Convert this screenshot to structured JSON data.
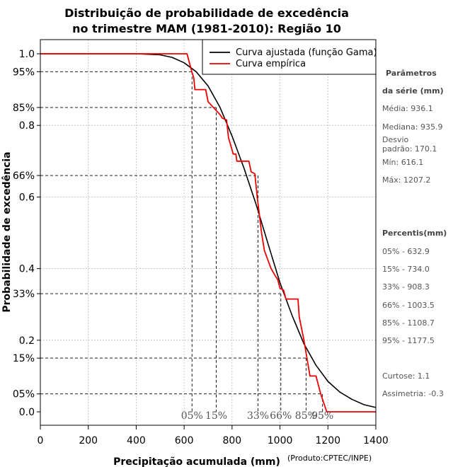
{
  "chart_data": {
    "type": "line",
    "title_line1": "Distribuição de probabilidade de excedência",
    "title_line2": "no trimestre MAM (1981-2010): Região 10",
    "xlabel": "Precipitação acumulada (mm)",
    "ylabel": "Probabilidade de excedência",
    "credit": "(Produto:CPTEC/INPE)",
    "xlim": [
      0,
      1400
    ],
    "ylim": [
      0.0,
      1.0
    ],
    "x_ticks": [
      0,
      200,
      400,
      600,
      800,
      1000,
      1200,
      1400
    ],
    "y_ticks": [
      {
        "value": 1.0,
        "label": "1.0"
      },
      {
        "value": 0.95,
        "label": "95%"
      },
      {
        "value": 0.85,
        "label": "85%"
      },
      {
        "value": 0.8,
        "label": "0.8"
      },
      {
        "value": 0.66,
        "label": "66%"
      },
      {
        "value": 0.6,
        "label": "0.6"
      },
      {
        "value": 0.4,
        "label": "0.4"
      },
      {
        "value": 0.33,
        "label": "33%"
      },
      {
        "value": 0.2,
        "label": "0.2"
      },
      {
        "value": 0.15,
        "label": "15%"
      },
      {
        "value": 0.05,
        "label": "05%"
      },
      {
        "value": 0.0,
        "label": "0.0"
      }
    ],
    "x_grid": [
      200,
      400,
      600,
      800,
      1000,
      1200
    ],
    "y_grid": [
      0.2,
      0.4,
      0.6,
      0.8
    ],
    "legend": {
      "position": "top-right",
      "entries": [
        {
          "label": "Curva ajustada (função Gama)",
          "color": "#000000"
        },
        {
          "label": "Curva empírica",
          "color": "#ee0000"
        }
      ]
    },
    "series": [
      {
        "name": "Curva ajustada (função Gama)",
        "color": "#000000",
        "points": [
          [
            0,
            1.0
          ],
          [
            400,
            1.0
          ],
          [
            500,
            0.997
          ],
          [
            550,
            0.99
          ],
          [
            600,
            0.975
          ],
          [
            650,
            0.95
          ],
          [
            700,
            0.91
          ],
          [
            750,
            0.85
          ],
          [
            800,
            0.77
          ],
          [
            850,
            0.68
          ],
          [
            900,
            0.58
          ],
          [
            950,
            0.47
          ],
          [
            1000,
            0.36
          ],
          [
            1050,
            0.27
          ],
          [
            1100,
            0.19
          ],
          [
            1150,
            0.13
          ],
          [
            1200,
            0.085
          ],
          [
            1250,
            0.055
          ],
          [
            1300,
            0.035
          ],
          [
            1350,
            0.02
          ],
          [
            1400,
            0.012
          ]
        ]
      },
      {
        "name": "Curva empírica",
        "color": "#ee0000",
        "points": [
          [
            0,
            1.0
          ],
          [
            612,
            1.0
          ],
          [
            632,
            0.95
          ],
          [
            640,
            0.933
          ],
          [
            645,
            0.9
          ],
          [
            690,
            0.9
          ],
          [
            700,
            0.866
          ],
          [
            750,
            0.83
          ],
          [
            760,
            0.82
          ],
          [
            777,
            0.815
          ],
          [
            785,
            0.766
          ],
          [
            805,
            0.72
          ],
          [
            816,
            0.72
          ],
          [
            820,
            0.7
          ],
          [
            870,
            0.7
          ],
          [
            880,
            0.67
          ],
          [
            895,
            0.665
          ],
          [
            905,
            0.6
          ],
          [
            923,
            0.5
          ],
          [
            935,
            0.45
          ],
          [
            963,
            0.4
          ],
          [
            980,
            0.38
          ],
          [
            990,
            0.37
          ],
          [
            1000,
            0.345
          ],
          [
            1015,
            0.34
          ],
          [
            1025,
            0.315
          ],
          [
            1075,
            0.315
          ],
          [
            1080,
            0.266
          ],
          [
            1100,
            0.2
          ],
          [
            1125,
            0.1
          ],
          [
            1150,
            0.1
          ],
          [
            1170,
            0.05
          ],
          [
            1185,
            0.02
          ],
          [
            1195,
            0.0
          ],
          [
            1400,
            0.0
          ]
        ]
      }
    ],
    "percentile_refs": [
      {
        "label": "05%",
        "x": 632.9,
        "p": 0.95
      },
      {
        "label": "15%",
        "x": 734.0,
        "p": 0.85
      },
      {
        "label": "33%",
        "x": 908.3,
        "p": 0.66
      },
      {
        "label": "66%",
        "x": 1003.5,
        "p": 0.33
      },
      {
        "label": "85%",
        "x": 1108.7,
        "p": 0.15
      },
      {
        "label": "95%",
        "x": 1177.5,
        "p": 0.05
      }
    ]
  },
  "stats_panel": {
    "params_title": "Parâmetros",
    "params_subtitle": "da série (mm)",
    "media": "Média: 936.1",
    "mediana": "Mediana: 935.9",
    "desvio_1": "Desvio",
    "desvio_2": "padrão: 170.1",
    "min": "Mín: 616.1",
    "max": "Máx: 1207.2",
    "percentis_title": "Percentis(mm)",
    "p05": "05% - 632.9",
    "p15": "15% - 734.0",
    "p33": "33% - 908.3",
    "p66": "66% - 1003.5",
    "p85": "85% - 1108.7",
    "p95": "95% - 1177.5",
    "curtose": "Curtose: 1.1",
    "assimetria": "Assimetria: -0.3"
  }
}
